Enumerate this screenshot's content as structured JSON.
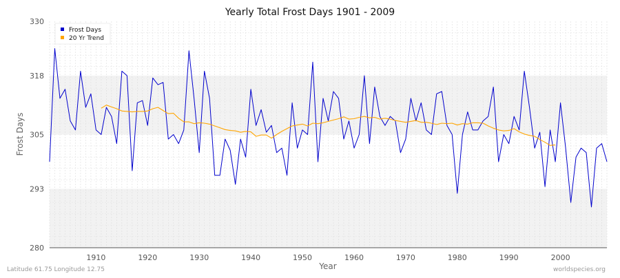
{
  "chart_data": {
    "type": "line",
    "title": "Yearly Total Frost Days 1901 - 2009",
    "xlabel": "Year",
    "ylabel": "Frost Days",
    "xlim": [
      1901,
      2009
    ],
    "ylim": [
      280,
      330
    ],
    "y_ticks": [
      280,
      293,
      305,
      318,
      330
    ],
    "x_ticks": [
      1910,
      1920,
      1930,
      1940,
      1950,
      1960,
      1970,
      1980,
      1990,
      2000
    ],
    "grid": true,
    "legend_position": "top-left",
    "series": [
      {
        "name": "Frost Days",
        "color": "#0000cc",
        "x": [
          1901,
          1902,
          1903,
          1904,
          1905,
          1906,
          1907,
          1908,
          1909,
          1910,
          1911,
          1912,
          1913,
          1914,
          1915,
          1916,
          1917,
          1918,
          1919,
          1920,
          1921,
          1922,
          1923,
          1924,
          1925,
          1926,
          1927,
          1928,
          1929,
          1930,
          1931,
          1932,
          1933,
          1934,
          1935,
          1936,
          1937,
          1938,
          1939,
          1940,
          1941,
          1942,
          1943,
          1944,
          1945,
          1946,
          1947,
          1948,
          1949,
          1950,
          1951,
          1952,
          1953,
          1954,
          1955,
          1956,
          1957,
          1958,
          1959,
          1960,
          1961,
          1962,
          1963,
          1964,
          1965,
          1966,
          1967,
          1968,
          1969,
          1970,
          1971,
          1972,
          1973,
          1974,
          1975,
          1976,
          1977,
          1978,
          1979,
          1980,
          1981,
          1982,
          1983,
          1984,
          1985,
          1986,
          1987,
          1988,
          1989,
          1990,
          1991,
          1992,
          1993,
          1994,
          1995,
          1996,
          1997,
          1998,
          1999,
          2000,
          2001,
          2002,
          2003,
          2004,
          2005,
          2006,
          2007,
          2008,
          2009
        ],
        "y": [
          299,
          324,
          313,
          315,
          308,
          306,
          319,
          311,
          314,
          306,
          305,
          311,
          309,
          303,
          319,
          318,
          297,
          312,
          312.5,
          307,
          317.5,
          316,
          316.5,
          304,
          305,
          303,
          306,
          323.5,
          313,
          301,
          319,
          313,
          296,
          296,
          304,
          301.5,
          294,
          304,
          300,
          315,
          307,
          310.5,
          305.5,
          307,
          301,
          302,
          296,
          312,
          302,
          306,
          305,
          321,
          299,
          313,
          308,
          314.5,
          313,
          304,
          308,
          302,
          305,
          318,
          303,
          315.5,
          309,
          307,
          309,
          308,
          301,
          304,
          313,
          308,
          312,
          306,
          305,
          314,
          314.5,
          307,
          305,
          292,
          305,
          310,
          306,
          306,
          308,
          309,
          315.5,
          299,
          305,
          303,
          309,
          306,
          319,
          311,
          302,
          305.5,
          293.5,
          306,
          299,
          312,
          302,
          290,
          300,
          302,
          301,
          289,
          302,
          303,
          299
        ]
      },
      {
        "name": "20 Yr Trend",
        "color": "#ffa500",
        "x": [
          1911,
          1912,
          1913,
          1914,
          1915,
          1916,
          1917,
          1918,
          1919,
          1920,
          1921,
          1922,
          1923,
          1924,
          1925,
          1926,
          1927,
          1928,
          1929,
          1930,
          1931,
          1932,
          1933,
          1934,
          1935,
          1936,
          1937,
          1938,
          1939,
          1940,
          1941,
          1942,
          1943,
          1944,
          1945,
          1946,
          1947,
          1948,
          1949,
          1950,
          1951,
          1952,
          1953,
          1954,
          1955,
          1956,
          1957,
          1958,
          1959,
          1960,
          1961,
          1962,
          1963,
          1964,
          1965,
          1966,
          1967,
          1968,
          1969,
          1970,
          1971,
          1972,
          1973,
          1974,
          1975,
          1976,
          1977,
          1978,
          1979,
          1980,
          1981,
          1982,
          1983,
          1984,
          1985,
          1986,
          1987,
          1988,
          1989,
          1990,
          1991,
          1992,
          1993,
          1994,
          1995,
          1996,
          1997,
          1998,
          1999
        ],
        "y": [
          310.8,
          311.5,
          311.1,
          310.7,
          310.2,
          310.1,
          310.0,
          310.1,
          310.1,
          310.2,
          310.7,
          311.0,
          310.3,
          309.6,
          309.7,
          308.6,
          307.8,
          307.8,
          307.4,
          307.6,
          307.5,
          307.3,
          306.9,
          306.5,
          306.1,
          305.9,
          305.8,
          305.5,
          305.7,
          305.6,
          304.6,
          304.9,
          304.9,
          304.2,
          305.0,
          305.7,
          306.3,
          306.9,
          307.1,
          307.3,
          306.9,
          307.5,
          307.4,
          307.6,
          307.9,
          308.2,
          308.5,
          308.9,
          308.4,
          308.5,
          308.8,
          309.0,
          308.7,
          308.8,
          308.4,
          308.6,
          308.4,
          308.1,
          307.9,
          307.7,
          307.9,
          308.1,
          307.7,
          307.7,
          307.5,
          307.2,
          307.5,
          307.4,
          307.5,
          307.1,
          307.4,
          307.3,
          307.6,
          307.6,
          307.5,
          306.9,
          306.4,
          306.0,
          305.8,
          305.9,
          306.3,
          305.6,
          305.1,
          304.8,
          304.6,
          303.9,
          303.3,
          302.6,
          302.7
        ]
      }
    ]
  },
  "footer": {
    "location": "Latitude 61.75 Longitude 12.75",
    "source": "worldspecies.org"
  }
}
